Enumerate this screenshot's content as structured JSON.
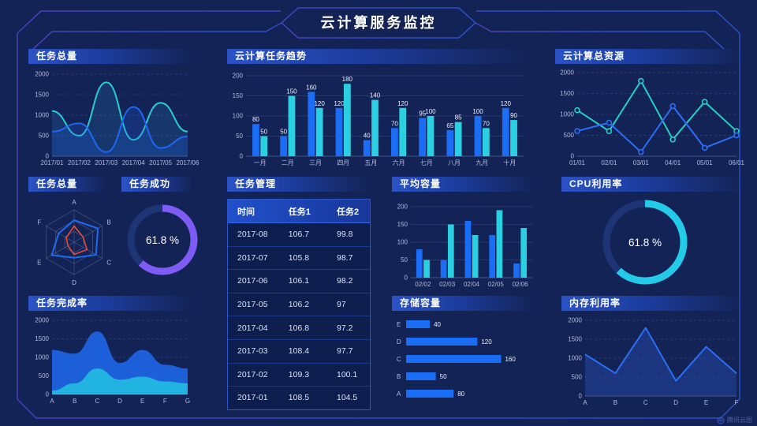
{
  "header": {
    "title": "云计算服务监控"
  },
  "footer": {
    "brand": "腾讯云图"
  },
  "colors": {
    "background": "#142355",
    "frame_line": "#4b49d6",
    "blue": "#1a6df5",
    "cyan": "#2ad0e2",
    "purple": "#7e5bf5",
    "gauge_track": "#1d3575",
    "red": "#f4502c"
  },
  "panels": {
    "task_total": "任务总量",
    "trend": "云计算任务趋势",
    "resources": "云计算总资源",
    "radar": "任务总量",
    "success": "任务成功",
    "table": "任务管理",
    "avg": "平均容量",
    "cpu": "CPU利用率",
    "completion": "任务完成率",
    "storage": "存储容量",
    "memory": "内存利用率"
  },
  "table": {
    "columns": [
      "时间",
      "任务1",
      "任务2"
    ],
    "rows": [
      [
        "2017-08",
        "106.7",
        "99.8"
      ],
      [
        "2017-07",
        "105.8",
        "98.7"
      ],
      [
        "2017-06",
        "106.1",
        "98.2"
      ],
      [
        "2017-05",
        "106.2",
        "97"
      ],
      [
        "2017-04",
        "106.8",
        "97.2"
      ],
      [
        "2017-03",
        "108.4",
        "97.7"
      ],
      [
        "2017-02",
        "109.3",
        "100.1"
      ],
      [
        "2017-01",
        "108.5",
        "104.5"
      ]
    ]
  },
  "chart_data": [
    {
      "key": "task_total",
      "type": "line",
      "title": "任务总量",
      "smooth": true,
      "dashed": true,
      "categories": [
        "2017/01",
        "2017/02",
        "2017/03",
        "2017/04",
        "2017/05",
        "2017/06"
      ],
      "ylim": [
        0,
        2000
      ],
      "yticks": [
        0,
        500,
        1000,
        1500,
        2000
      ],
      "series": [
        {
          "name": "cyan-series",
          "color": "#29cdd0",
          "fill": "rgba(38,150,215,0.18)",
          "values": [
            1100,
            500,
            1800,
            400,
            1300,
            600
          ]
        },
        {
          "name": "blue-series",
          "color": "#1f66f0",
          "fill": "rgba(31,102,240,0.22)",
          "values": [
            600,
            800,
            100,
            1200,
            200,
            480
          ]
        }
      ]
    },
    {
      "key": "trend",
      "type": "bar",
      "title": "云计算任务趋势",
      "labels": true,
      "categories": [
        "一月",
        "二月",
        "三月",
        "四月",
        "五月",
        "六月",
        "七月",
        "八月",
        "九月",
        "十月"
      ],
      "ylim": [
        0,
        200
      ],
      "yticks": [
        0,
        50,
        100,
        150,
        200
      ],
      "series": [
        {
          "name": "task1",
          "color": "#1a6df5",
          "values": [
            80,
            50,
            160,
            120,
            40,
            70,
            95,
            65,
            100,
            120
          ]
        },
        {
          "name": "task2",
          "color": "#2ad0e2",
          "values": [
            50,
            150,
            120,
            180,
            140,
            120,
            100,
            85,
            70,
            90
          ]
        }
      ]
    },
    {
      "key": "resources",
      "type": "line",
      "title": "云计算总资源",
      "smooth": false,
      "dashed": true,
      "markers": true,
      "categories": [
        "01/01",
        "02/01",
        "03/01",
        "04/01",
        "05/01",
        "06/01"
      ],
      "ylim": [
        0,
        2000
      ],
      "yticks": [
        0,
        500,
        1000,
        1500,
        2000
      ],
      "series": [
        {
          "name": "cyan-series",
          "color": "#24cfc4",
          "values": [
            1100,
            600,
            1800,
            400,
            1300,
            600
          ]
        },
        {
          "name": "blue-series",
          "color": "#2a6ff5",
          "values": [
            600,
            800,
            100,
            1200,
            200,
            500
          ]
        }
      ]
    },
    {
      "key": "radar",
      "type": "radar",
      "title": "任务总量",
      "axes": [
        "A",
        "B",
        "C",
        "D",
        "E",
        "F"
      ],
      "max": 100,
      "series": [
        {
          "name": "blue",
          "color": "#1e6bf2",
          "width": 2,
          "values": [
            68,
            85,
            78,
            48,
            80,
            55
          ]
        },
        {
          "name": "red",
          "color": "#f4502c",
          "width": 1.5,
          "values": [
            50,
            32,
            46,
            38,
            22,
            28
          ]
        }
      ]
    },
    {
      "key": "success",
      "type": "donut",
      "title": "任务成功",
      "percent": 61.8,
      "label": "61.8 %",
      "color": "#7e5bf5",
      "track": "#1d3575"
    },
    {
      "key": "avg",
      "type": "bar",
      "title": "平均容量",
      "labels": false,
      "categories": [
        "02/02",
        "02/03",
        "02/04",
        "02/05",
        "02/06"
      ],
      "ylim": [
        0,
        200
      ],
      "yticks": [
        0,
        50,
        100,
        150,
        200
      ],
      "series": [
        {
          "name": "blue",
          "color": "#1a6df5",
          "values": [
            80,
            50,
            160,
            120,
            40
          ]
        },
        {
          "name": "cyan",
          "color": "#2ad0e2",
          "values": [
            50,
            150,
            120,
            190,
            140
          ]
        }
      ]
    },
    {
      "key": "cpu",
      "type": "donut",
      "title": "CPU利用率",
      "percent": 61.8,
      "label": "61.8 %",
      "color": "#23cbe8",
      "track": "#1d3575"
    },
    {
      "key": "completion",
      "type": "line",
      "title": "任务完成率",
      "smooth": true,
      "dashed": true,
      "strokeWidth": 0,
      "categories": [
        "A",
        "B",
        "C",
        "D",
        "E",
        "F",
        "G"
      ],
      "ylim": [
        0,
        2000
      ],
      "yticks": [
        0,
        500,
        1000,
        1500,
        2000
      ],
      "series": [
        {
          "name": "blue-area",
          "color": "#1d5fd8",
          "fill": "#1d5fd8",
          "values": [
            1200,
            1100,
            1700,
            850,
            1200,
            800,
            700
          ]
        },
        {
          "name": "cyan-area",
          "color": "#22b4e0",
          "fill": "#22b4e0",
          "values": [
            100,
            300,
            700,
            400,
            480,
            350,
            300
          ]
        }
      ]
    },
    {
      "key": "storage",
      "type": "hbar",
      "title": "存储容量",
      "max": 170,
      "color": "#1a6df5",
      "categories": [
        "E",
        "D",
        "C",
        "B",
        "A"
      ],
      "values": [
        40,
        120,
        160,
        50,
        80
      ]
    },
    {
      "key": "memory",
      "type": "line",
      "title": "内存利用率",
      "smooth": false,
      "dashed": true,
      "categories": [
        "A",
        "B",
        "C",
        "D",
        "E",
        "F"
      ],
      "ylim": [
        0,
        2000
      ],
      "yticks": [
        0,
        500,
        1000,
        1500,
        2000
      ],
      "series": [
        {
          "name": "blue-series",
          "color": "#2a6ff5",
          "fill": "rgba(40,90,205,0.35)",
          "values": [
            1100,
            600,
            1800,
            400,
            1300,
            600
          ]
        }
      ]
    }
  ]
}
